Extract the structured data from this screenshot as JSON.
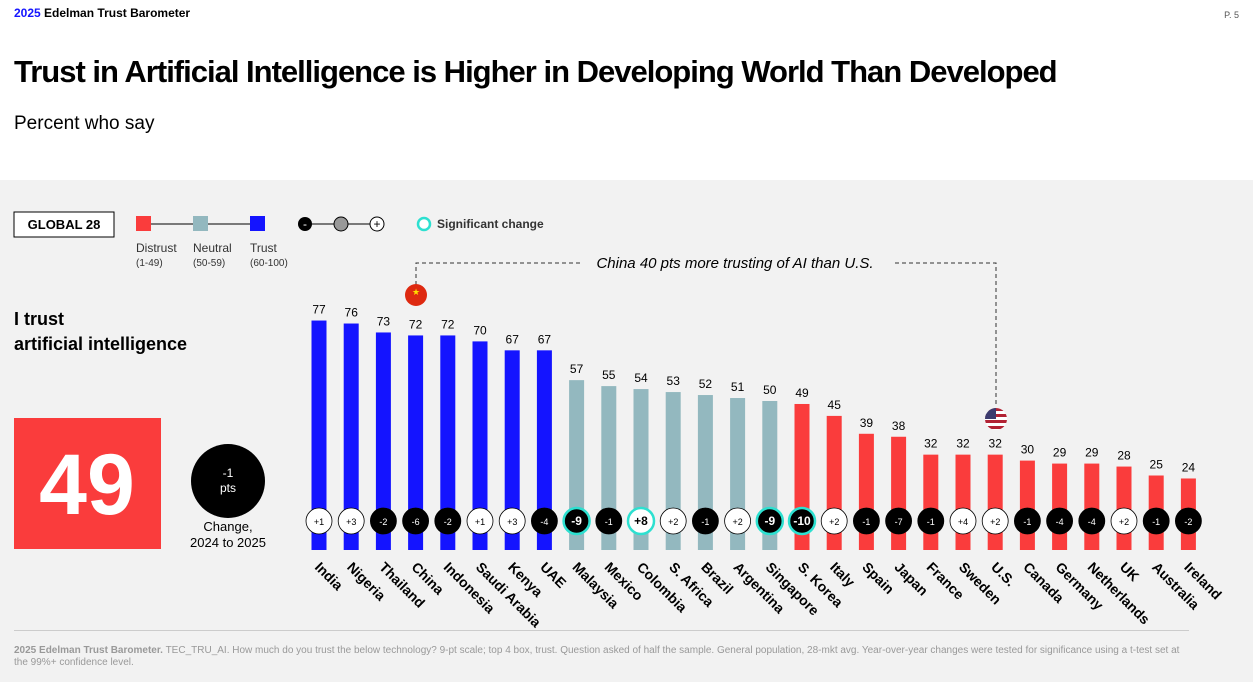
{
  "header": {
    "brand_year": "2025",
    "brand": "Edelman Trust Barometer",
    "page": "P. 5"
  },
  "chart_data": {
    "type": "bar",
    "title": "Trust in Artificial Intelligence is Higher in Developing World Than Developed",
    "subtitle": "Percent who say",
    "question": [
      "I trust",
      "artificial intelligence"
    ],
    "global": {
      "label": "GLOBAL 28",
      "value": 49,
      "change": -1,
      "change_unit": "pts",
      "change_caption": [
        "Change,",
        "2024 to 2025"
      ]
    },
    "legend": [
      {
        "label": "Distrust",
        "range": "(1-49)",
        "color": "#fa3c3c"
      },
      {
        "label": "Neutral",
        "range": "(50-59)",
        "color": "#93b8bf"
      },
      {
        "label": "Trust",
        "range": "(60-100)",
        "color": "#1414ff"
      }
    ],
    "significance_label": "Significant change",
    "annotation": "China 40 pts more trusting of AI than U.S.",
    "categories": [
      "India",
      "Nigeria",
      "Thailand",
      "China",
      "Indonesia",
      "Saudi Arabia",
      "Kenya",
      "UAE",
      "Malaysia",
      "Mexico",
      "Colombia",
      "S. Africa",
      "Brazil",
      "Argentina",
      "Singapore",
      "S. Korea",
      "Italy",
      "Spain",
      "Japan",
      "France",
      "Sweden",
      "U.S.",
      "Canada",
      "Germany",
      "Netherlands",
      "UK",
      "Australia",
      "Ireland"
    ],
    "values": [
      77,
      76,
      73,
      72,
      72,
      70,
      67,
      67,
      57,
      55,
      54,
      53,
      52,
      51,
      50,
      49,
      45,
      39,
      38,
      32,
      32,
      32,
      30,
      29,
      29,
      28,
      25,
      24
    ],
    "colors": [
      "#1414ff",
      "#1414ff",
      "#1414ff",
      "#1414ff",
      "#1414ff",
      "#1414ff",
      "#1414ff",
      "#1414ff",
      "#93b8bf",
      "#93b8bf",
      "#93b8bf",
      "#93b8bf",
      "#93b8bf",
      "#93b8bf",
      "#93b8bf",
      "#fa3c3c",
      "#fa3c3c",
      "#fa3c3c",
      "#fa3c3c",
      "#fa3c3c",
      "#fa3c3c",
      "#fa3c3c",
      "#fa3c3c",
      "#fa3c3c",
      "#fa3c3c",
      "#fa3c3c",
      "#fa3c3c",
      "#fa3c3c"
    ],
    "changes": [
      "+1",
      "+3",
      "-2",
      "-6",
      "-2",
      "+1",
      "+3",
      "-4",
      "-9",
      "-1",
      "+8",
      "+2",
      "-1",
      "+2",
      "-9",
      "-10",
      "+2",
      "-1",
      "-7",
      "-1",
      "+4",
      "+2",
      "-1",
      "-4",
      "-4",
      "+2",
      "-1",
      "-2"
    ],
    "significant": [
      false,
      false,
      false,
      false,
      false,
      false,
      false,
      false,
      true,
      false,
      true,
      false,
      false,
      false,
      true,
      true,
      false,
      false,
      false,
      false,
      false,
      false,
      false,
      false,
      false,
      false,
      false,
      false
    ]
  },
  "footnote": {
    "source": "2025 Edelman Trust Barometer.",
    "text": "TEC_TRU_AI. How much do you trust the below technology? 9-pt scale; top 4 box, trust. Question asked of half the sample. General population, 28-mkt avg. Year-over-year changes were tested for significance using a t-test set at the 99%+ confidence level."
  }
}
